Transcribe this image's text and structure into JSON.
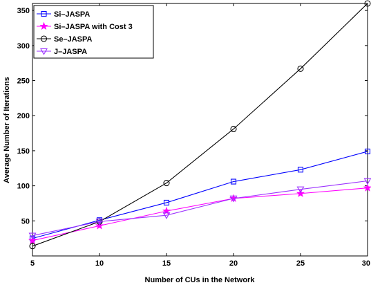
{
  "chart_data": {
    "type": "line",
    "title": "",
    "xlabel": "Number of CUs in the Network",
    "ylabel": "Average Number of Iterations",
    "x": [
      5,
      10,
      15,
      20,
      25,
      30
    ],
    "xlim": [
      5,
      30
    ],
    "ylim": [
      0,
      360
    ],
    "xticks": [
      "5",
      "10",
      "15",
      "20",
      "25",
      "30"
    ],
    "yticks": [
      "50",
      "100",
      "150",
      "200",
      "250",
      "300",
      "350"
    ],
    "grid": false,
    "legend_position": "top-left",
    "series": [
      {
        "name": "Si–JASPA",
        "values": [
          25,
          51,
          76,
          106,
          123,
          149
        ],
        "color": "#0000ff",
        "marker": "square"
      },
      {
        "name": "Si–JASPA with Cost 3",
        "values": [
          22,
          43,
          64,
          82,
          89,
          97
        ],
        "color": "#ff00ff",
        "marker": "star"
      },
      {
        "name": "Se–JASPA",
        "values": [
          14,
          49,
          104,
          181,
          267,
          360
        ],
        "color": "#000000",
        "marker": "circle"
      },
      {
        "name": "J–JASPA",
        "values": [
          29,
          49,
          58,
          82,
          95,
          107
        ],
        "color": "#9b30ff",
        "marker": "triangle-down"
      }
    ]
  }
}
